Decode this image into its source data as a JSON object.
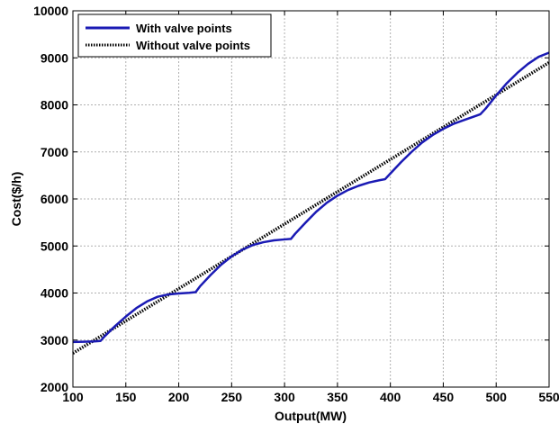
{
  "chart_data": {
    "type": "line",
    "title": "",
    "xlabel": "Output(MW)",
    "ylabel": "Cost($/h)",
    "xlim": [
      100,
      550
    ],
    "ylim": [
      2000,
      10000
    ],
    "x_ticks": [
      100,
      150,
      200,
      250,
      300,
      350,
      400,
      450,
      500,
      550
    ],
    "y_ticks": [
      2000,
      3000,
      4000,
      5000,
      6000,
      7000,
      8000,
      9000,
      10000
    ],
    "grid": true,
    "legend_position": "top-left",
    "series": [
      {
        "name": "With valve points",
        "color": "#1a1ab4",
        "style": "solid",
        "x": [
          100,
          110,
          120,
          126,
          130,
          140,
          150,
          160,
          170,
          180,
          190,
          200,
          210,
          216,
          220,
          230,
          240,
          250,
          260,
          270,
          280,
          290,
          300,
          306,
          310,
          320,
          330,
          340,
          350,
          360,
          370,
          380,
          390,
          395,
          400,
          410,
          420,
          430,
          440,
          450,
          460,
          470,
          480,
          485,
          490,
          500,
          510,
          520,
          530,
          540,
          550
        ],
        "values": [
          2960,
          2965,
          2972,
          2980,
          3080,
          3300,
          3500,
          3680,
          3820,
          3920,
          3970,
          3990,
          4005,
          4020,
          4140,
          4380,
          4600,
          4780,
          4920,
          5020,
          5080,
          5120,
          5140,
          5150,
          5260,
          5500,
          5730,
          5920,
          6070,
          6190,
          6280,
          6350,
          6400,
          6420,
          6540,
          6780,
          7000,
          7200,
          7360,
          7490,
          7600,
          7680,
          7760,
          7800,
          7920,
          8200,
          8460,
          8680,
          8870,
          9020,
          9110
        ]
      },
      {
        "name": "Without valve points",
        "color": "#000000",
        "style": "dotted",
        "x": [
          100,
          550
        ],
        "values": [
          2720,
          8900
        ]
      }
    ]
  }
}
